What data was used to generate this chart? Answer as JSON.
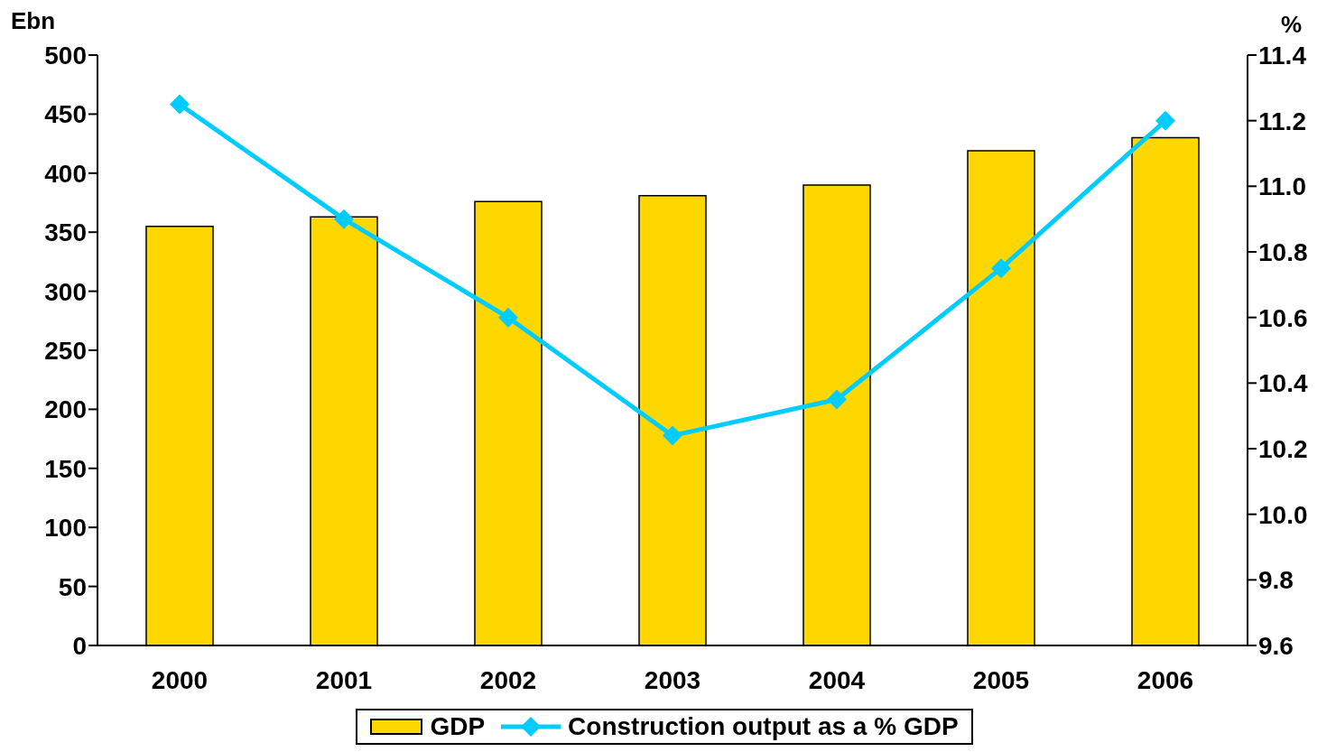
{
  "chart_data": {
    "type": "bar",
    "ylabel": "Ebn",
    "y2label": "%",
    "categories": [
      "2000",
      "2001",
      "2002",
      "2003",
      "2004",
      "2005",
      "2006"
    ],
    "series": [
      {
        "name": "GDP",
        "color": "#ffd700",
        "values": [
          355,
          363,
          376,
          381,
          390,
          419,
          430
        ]
      },
      {
        "name": "Construction output as a % GDP",
        "type": "line",
        "axis": "y2",
        "color": "#00ccff",
        "marker": "diamond",
        "values": [
          11.25,
          10.9,
          10.6,
          10.24,
          10.35,
          10.75,
          11.2
        ]
      }
    ],
    "ylim": [
      0,
      500
    ],
    "yticks": [
      0,
      50,
      100,
      150,
      200,
      250,
      300,
      350,
      400,
      450,
      500
    ],
    "y2lim": [
      9.6,
      11.4
    ],
    "y2ticks": [
      9.6,
      9.8,
      {
        "value": 10.0,
        "label": "10.0"
      },
      10.2,
      10.4,
      10.6,
      10.8,
      {
        "value": 11.0,
        "label": "11.0"
      },
      11.2,
      11.4
    ],
    "grid": false,
    "legend": "bottom"
  }
}
